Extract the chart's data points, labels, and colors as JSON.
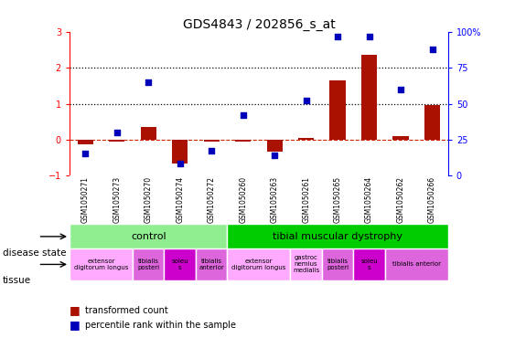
{
  "title": "GDS4843 / 202856_s_at",
  "samples": [
    "GSM1050271",
    "GSM1050273",
    "GSM1050270",
    "GSM1050274",
    "GSM1050272",
    "GSM1050260",
    "GSM1050263",
    "GSM1050261",
    "GSM1050265",
    "GSM1050264",
    "GSM1050262",
    "GSM1050266"
  ],
  "transformed_count": [
    -0.13,
    -0.05,
    0.35,
    -0.68,
    -0.05,
    -0.06,
    -0.33,
    0.03,
    1.65,
    2.38,
    0.1,
    0.97
  ],
  "percentile_rank": [
    15,
    30,
    65,
    8,
    17,
    42,
    14,
    52,
    97,
    97,
    60,
    88
  ],
  "ylim_left": [
    -1,
    3
  ],
  "ylim_right": [
    0,
    100
  ],
  "left_ticks": [
    -1,
    0,
    1,
    2,
    3
  ],
  "right_ticks": [
    0,
    25,
    50,
    75,
    100
  ],
  "disease_state_groups": [
    {
      "label": "control",
      "start": 0,
      "end": 5,
      "color": "#90ee90"
    },
    {
      "label": "tibial muscular dystrophy",
      "start": 5,
      "end": 12,
      "color": "#00cc00"
    }
  ],
  "tissue_groups": [
    {
      "label": "extensor\ndigitorum longus",
      "start": 0,
      "end": 2,
      "color": "#ffaaff"
    },
    {
      "label": "tibialis\nposteri",
      "start": 2,
      "end": 3,
      "color": "#dd66dd"
    },
    {
      "label": "soleu\ns",
      "start": 3,
      "end": 4,
      "color": "#cc00cc"
    },
    {
      "label": "tibialis\nanterior",
      "start": 4,
      "end": 5,
      "color": "#dd66dd"
    },
    {
      "label": "extensor\ndigitorum longus",
      "start": 5,
      "end": 7,
      "color": "#ffaaff"
    },
    {
      "label": "gastroc\nnemius\nmedialis",
      "start": 7,
      "end": 8,
      "color": "#ffaaff"
    },
    {
      "label": "tibialis\nposteri",
      "start": 8,
      "end": 9,
      "color": "#dd66dd"
    },
    {
      "label": "soleu\ns",
      "start": 9,
      "end": 10,
      "color": "#cc00cc"
    },
    {
      "label": "tibialis anterior",
      "start": 10,
      "end": 12,
      "color": "#dd66dd"
    }
  ],
  "bar_color": "#aa1100",
  "dot_color": "#0000bb",
  "dashed_line_color": "#cc2200",
  "dotted_line_color": "#000000",
  "bg_color": "#ffffff",
  "sample_bg_color": "#cccccc"
}
